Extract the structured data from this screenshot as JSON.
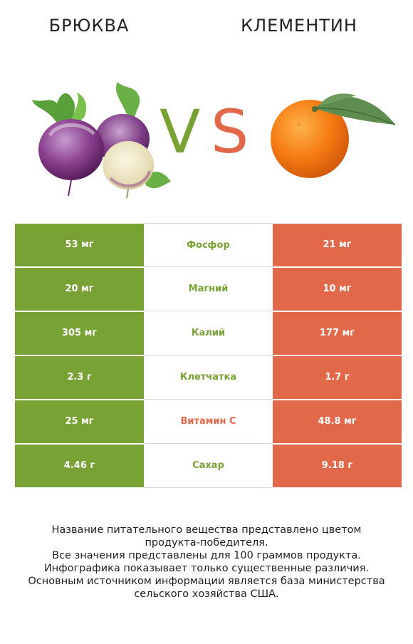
{
  "header": {
    "left_title": "БРЮКВА",
    "right_title": "КЛЕМЕНТИН",
    "vs_v": "V",
    "vs_s": "S"
  },
  "colors": {
    "left_accent": "#79a234",
    "right_accent": "#e1694a"
  },
  "rows": [
    {
      "left": "53 мг",
      "name": "Фосфор",
      "right": "21 мг",
      "winner": "left"
    },
    {
      "left": "20 мг",
      "name": "Магний",
      "right": "10 мг",
      "winner": "left"
    },
    {
      "left": "305 мг",
      "name": "Калий",
      "right": "177 мг",
      "winner": "left"
    },
    {
      "left": "2.3 г",
      "name": "Клетчатка",
      "right": "1.7 г",
      "winner": "left"
    },
    {
      "left": "25 мг",
      "name": "Витамин C",
      "right": "48.8 мг",
      "winner": "right"
    },
    {
      "left": "4.46 г",
      "name": "Сахар",
      "right": "9.18 г",
      "winner": "left"
    }
  ],
  "footer": {
    "line1": "Название питательного вещества представлено цветом",
    "line2": "продукта-победителя.",
    "line3": "Все значения представлены для 100 граммов продукта.",
    "line4": "Инфографика показывает только существенные различия.",
    "line5": "Основным источником информации является база министерства",
    "line6": "сельского хозяйства США."
  },
  "images": {
    "left_icon": "rutabaga-icon",
    "right_icon": "clementine-icon"
  }
}
